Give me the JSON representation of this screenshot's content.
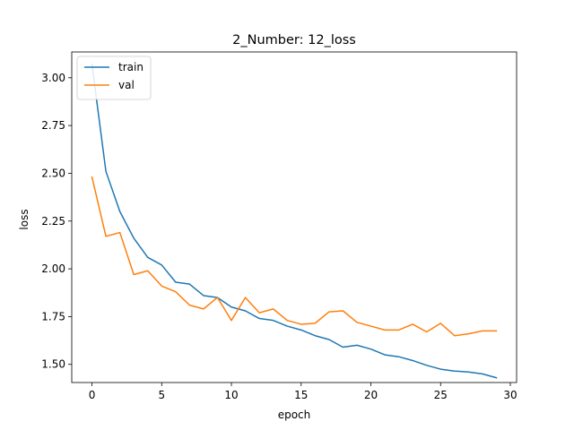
{
  "chart_data": {
    "type": "line",
    "title": "2_Number: 12_loss",
    "xlabel": "epoch",
    "ylabel": "loss",
    "xlim": [
      -1.45,
      30.45
    ],
    "ylim": [
      1.405,
      3.135
    ],
    "xticks": [
      0,
      5,
      10,
      15,
      20,
      25,
      30
    ],
    "yticks": [
      1.5,
      1.75,
      2.0,
      2.25,
      2.5,
      2.75,
      3.0
    ],
    "ytick_labels": [
      "1.50",
      "1.75",
      "2.00",
      "2.25",
      "2.50",
      "2.75",
      "3.00"
    ],
    "grid": false,
    "legend_position": "upper-left",
    "x": [
      0,
      1,
      2,
      3,
      4,
      5,
      6,
      7,
      8,
      9,
      10,
      11,
      12,
      13,
      14,
      15,
      16,
      17,
      18,
      19,
      20,
      21,
      22,
      23,
      24,
      25,
      26,
      27,
      28,
      29
    ],
    "series": [
      {
        "name": "train",
        "color": "#1f77b4",
        "values": [
          3.07,
          2.51,
          2.3,
          2.16,
          2.06,
          2.02,
          1.93,
          1.92,
          1.86,
          1.85,
          1.8,
          1.78,
          1.74,
          1.73,
          1.7,
          1.68,
          1.65,
          1.63,
          1.59,
          1.6,
          1.58,
          1.55,
          1.54,
          1.52,
          1.495,
          1.475,
          1.465,
          1.46,
          1.45,
          1.43
        ]
      },
      {
        "name": "val",
        "color": "#ff7f0e",
        "values": [
          2.48,
          2.17,
          2.19,
          1.97,
          1.99,
          1.91,
          1.88,
          1.81,
          1.79,
          1.85,
          1.73,
          1.85,
          1.77,
          1.79,
          1.73,
          1.71,
          1.715,
          1.775,
          1.78,
          1.72,
          1.7,
          1.68,
          1.68,
          1.71,
          1.67,
          1.715,
          1.65,
          1.66,
          1.675,
          1.675
        ]
      }
    ]
  }
}
